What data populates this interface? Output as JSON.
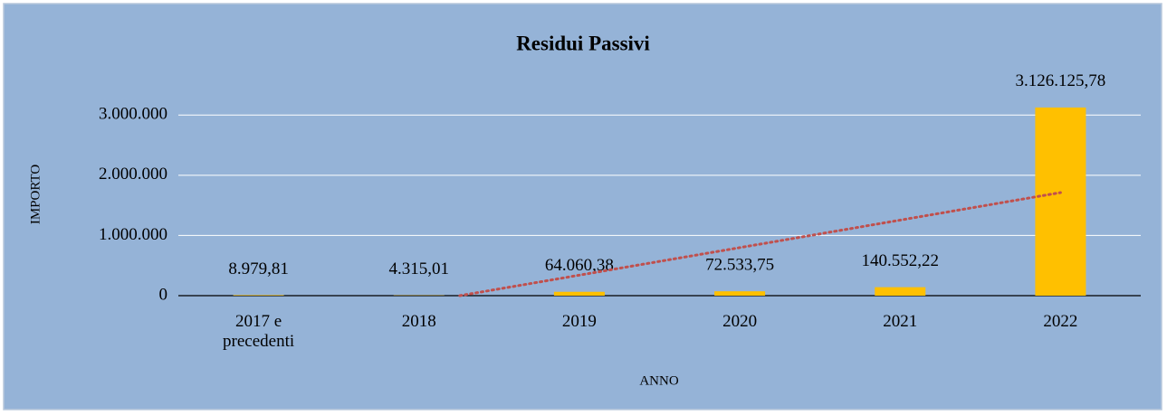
{
  "chart_data": {
    "type": "bar",
    "title": "Residui Passivi",
    "y_label": "IMPORTO",
    "x_label": "ANNO",
    "categories": [
      "2017 e precedenti",
      "2018",
      "2019",
      "2020",
      "2021",
      "2022"
    ],
    "values": [
      8979.81,
      4315.01,
      64060.38,
      72533.75,
      140552.22,
      3126125.78
    ],
    "value_labels": [
      "8.979,81",
      "4.315,01",
      "64.060,38",
      "72.533,75",
      "140.552,22",
      "3.126.125,78"
    ],
    "color": "#ffc000",
    "ylim": [
      0,
      3500000
    ],
    "yticks": [
      0,
      {
        "value": 1000000,
        "label": "1.000.000"
      },
      {
        "value": 2000000,
        "label": "2.000.000"
      },
      {
        "value": 3000000,
        "label": "3.000.000"
      }
    ],
    "grid": true,
    "trendline": {
      "kind": "linear",
      "color": "#c0504d"
    }
  }
}
